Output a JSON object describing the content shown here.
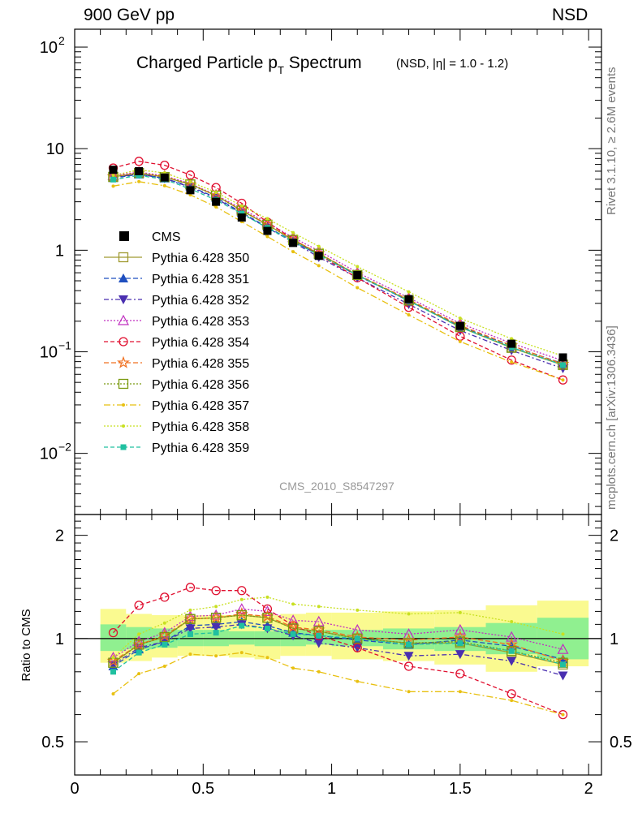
{
  "header": {
    "left": "900 GeV pp",
    "right": "NSD"
  },
  "side_labels": {
    "rivet": "Rivet 3.1.10, ≥ 2.6M events",
    "mcplots": "mcplots.cern.ch [arXiv:1306.3436]"
  },
  "colors": {
    "CMS": "#000000",
    "350": "#a09a30",
    "351": "#1f4fbf",
    "352": "#4a2fb0",
    "353": "#c030c0",
    "354": "#e01030",
    "355": "#f07020",
    "356": "#7a9a10",
    "357": "#e8c010",
    "358": "#c8e020",
    "359": "#20c0a0",
    "band_inner": "#90f090",
    "band_outer": "#fafa90"
  },
  "chart_data": {
    "type": "scatter",
    "title_main": "Charged Particle p",
    "title_sub": "T",
    "title_main2": " Spectrum",
    "title_small": "(NSD, |η| = 1.0 - 1.2)",
    "watermark": "CMS_2010_S8547297",
    "ratio_ylabel": "Ratio to CMS",
    "main_yscale": "log",
    "main_ylim": [
      0.0025,
      150
    ],
    "ratio_ylim": [
      0.4,
      2.3
    ],
    "xlim": [
      0,
      2.05
    ],
    "x_ticks": [
      "0",
      "0.5",
      "1",
      "1.5",
      "2"
    ],
    "main_y_ticks": [
      {
        "base": "10",
        "exp": "2"
      },
      {
        "base": "10",
        "exp": ""
      },
      {
        "base": "1",
        "exp": ""
      },
      {
        "base": "10",
        "exp": "−1"
      },
      {
        "base": "10",
        "exp": "−2"
      }
    ],
    "ratio_y_ticks": [
      "2",
      "1",
      "0.5"
    ],
    "legend_position": "left",
    "x": [
      0.15,
      0.25,
      0.35,
      0.45,
      0.55,
      0.65,
      0.75,
      0.85,
      0.95,
      1.1,
      1.3,
      1.5,
      1.7,
      1.9
    ],
    "cms": {
      "name": "CMS",
      "values": [
        6.2,
        6.0,
        5.2,
        3.9,
        3.0,
        2.1,
        1.55,
        1.18,
        0.88,
        0.57,
        0.33,
        0.18,
        0.12,
        0.088
      ],
      "band_x": [
        0.1,
        0.2,
        0.3,
        0.4,
        0.5,
        0.6,
        0.7,
        0.8,
        0.9,
        1.0,
        1.2,
        1.4,
        1.6,
        1.8,
        2.0
      ],
      "band_inner": [
        [
          0.92,
          1.1
        ],
        [
          0.93,
          1.08
        ],
        [
          0.94,
          1.07
        ],
        [
          0.95,
          1.06
        ],
        [
          0.95,
          1.06
        ],
        [
          0.96,
          1.05
        ],
        [
          0.95,
          1.05
        ],
        [
          0.95,
          1.06
        ],
        [
          0.96,
          1.06
        ],
        [
          0.95,
          1.06
        ],
        [
          0.93,
          1.07
        ],
        [
          0.92,
          1.08
        ],
        [
          0.9,
          1.11
        ],
        [
          0.87,
          1.15
        ]
      ],
      "band_outer": [
        [
          0.85,
          1.22
        ],
        [
          0.86,
          1.18
        ],
        [
          0.88,
          1.17
        ],
        [
          0.89,
          1.17
        ],
        [
          0.89,
          1.17
        ],
        [
          0.88,
          1.17
        ],
        [
          0.87,
          1.17
        ],
        [
          0.89,
          1.18
        ],
        [
          0.89,
          1.19
        ],
        [
          0.87,
          1.19
        ],
        [
          0.86,
          1.2
        ],
        [
          0.84,
          1.21
        ],
        [
          0.8,
          1.25
        ],
        [
          0.83,
          1.29
        ]
      ]
    },
    "series": [
      {
        "name": "Pythia 6.428 350",
        "key": "350",
        "marker": "square-open",
        "dash": "solid",
        "ratio": [
          0.85,
          0.96,
          1.01,
          1.14,
          1.15,
          1.17,
          1.15,
          1.07,
          1.05,
          1.0,
          0.97,
          0.97,
          0.91,
          0.84
        ]
      },
      {
        "name": "Pythia 6.428 351",
        "key": "351",
        "marker": "triangle-up",
        "dash": "6,3",
        "ratio": [
          0.83,
          0.93,
          0.98,
          1.09,
          1.1,
          1.12,
          1.09,
          1.04,
          1.02,
          0.99,
          0.96,
          0.99,
          0.95,
          0.87
        ]
      },
      {
        "name": "Pythia 6.428 352",
        "key": "352",
        "marker": "triangle-down",
        "dash": "6,3,2,3",
        "ratio": [
          0.84,
          0.94,
          0.98,
          1.07,
          1.08,
          1.1,
          1.07,
          1.02,
          0.97,
          0.94,
          0.89,
          0.9,
          0.86,
          0.78
        ]
      },
      {
        "name": "Pythia 6.428 353",
        "key": "353",
        "marker": "triangle-open",
        "dash": "2,2",
        "ratio": [
          0.88,
          0.98,
          1.04,
          1.16,
          1.17,
          1.22,
          1.2,
          1.13,
          1.12,
          1.06,
          1.03,
          1.06,
          1.01,
          0.93
        ]
      },
      {
        "name": "Pythia 6.428 354",
        "key": "354",
        "marker": "circle-open",
        "dash": "5,3",
        "ratio": [
          1.04,
          1.25,
          1.32,
          1.41,
          1.38,
          1.38,
          1.22,
          1.09,
          1.02,
          0.94,
          0.83,
          0.79,
          0.69,
          0.6
        ]
      },
      {
        "name": "Pythia 6.428 355",
        "key": "355",
        "marker": "star",
        "dash": "6,3",
        "ratio": [
          0.86,
          0.96,
          1.02,
          1.14,
          1.15,
          1.18,
          1.16,
          1.08,
          1.06,
          1.01,
          0.99,
          1.01,
          0.96,
          0.86
        ]
      },
      {
        "name": "Pythia 6.428 356",
        "key": "356",
        "marker": "square-open",
        "dash": "2,2",
        "ratio": [
          0.85,
          0.96,
          1.01,
          1.14,
          1.15,
          1.17,
          1.15,
          1.07,
          1.05,
          1.0,
          0.97,
          0.98,
          0.92,
          0.85
        ]
      },
      {
        "name": "Pythia 6.428 357",
        "key": "357",
        "marker": "dot",
        "dash": "8,3,2,3",
        "ratio": [
          0.69,
          0.79,
          0.83,
          0.9,
          0.89,
          0.91,
          0.88,
          0.82,
          0.8,
          0.75,
          0.7,
          0.7,
          0.66,
          0.6
        ]
      },
      {
        "name": "Pythia 6.428 358",
        "key": "358",
        "marker": "dot",
        "dash": "2,2",
        "ratio": [
          0.88,
          1.03,
          1.11,
          1.21,
          1.24,
          1.3,
          1.32,
          1.26,
          1.24,
          1.21,
          1.18,
          1.19,
          1.12,
          1.03
        ]
      },
      {
        "name": "Pythia 6.428 359",
        "key": "359",
        "marker": "square-small",
        "dash": "5,3",
        "ratio": [
          0.8,
          0.91,
          0.96,
          1.03,
          1.04,
          1.09,
          1.07,
          1.03,
          1.02,
          1.0,
          0.96,
          0.97,
          0.92,
          0.84
        ]
      }
    ]
  }
}
